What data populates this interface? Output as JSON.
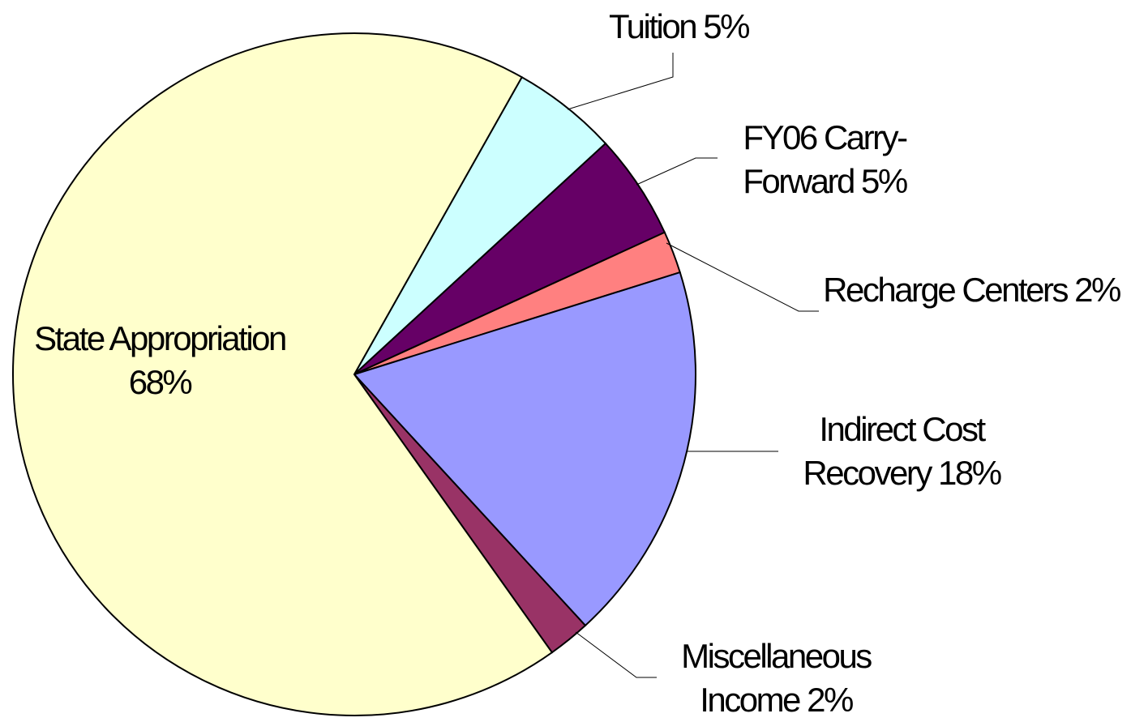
{
  "chart_data": {
    "type": "pie",
    "categories": [
      "Tuition",
      "FY06 Carry-Forward",
      "Recharge Centers",
      "Indirect Cost Recovery",
      "Miscellaneous Income",
      "State Appropriation"
    ],
    "values": [
      5,
      5,
      2,
      18,
      2,
      68
    ],
    "value_labels": [
      "5%",
      "5%",
      "2%",
      "18%",
      "2%",
      "68%"
    ],
    "colors": [
      "#ccffff",
      "#660066",
      "#ff8080",
      "#9999ff",
      "#993366",
      "#ffffcc"
    ]
  }
}
